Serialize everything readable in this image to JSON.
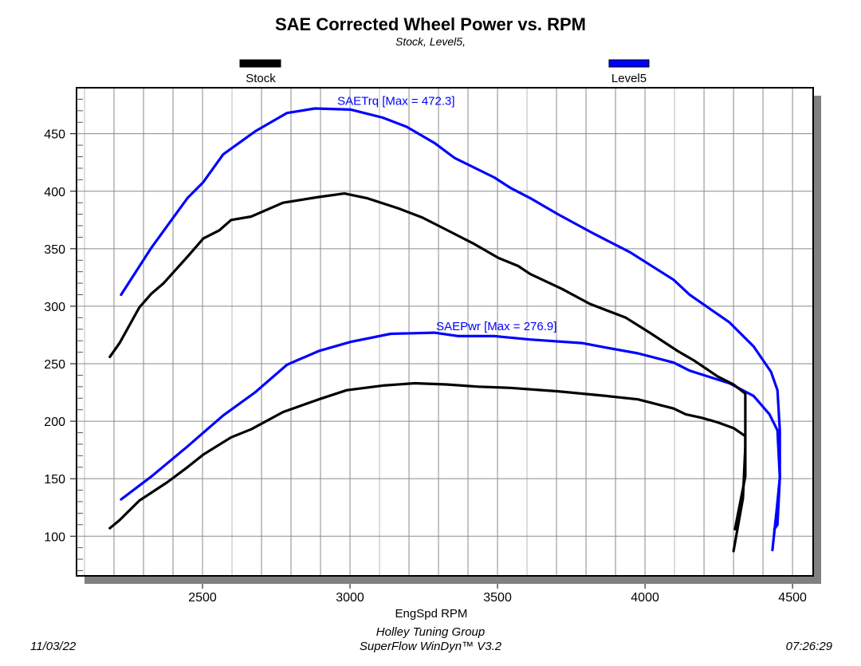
{
  "chart_data": {
    "type": "line",
    "title": "SAE Corrected Wheel Power vs. RPM",
    "subtitle": "Stock, Level5,",
    "xlabel": "EngSpd RPM",
    "ylabel": "",
    "xlim": [
      2073,
      4570
    ],
    "ylim": [
      65.5,
      490
    ],
    "grid": true,
    "x_ticks": [
      2500,
      3000,
      3500,
      4000,
      4500
    ],
    "y_ticks": [
      100,
      150,
      200,
      250,
      300,
      350,
      400,
      450
    ],
    "legend": [
      {
        "name": "Stock",
        "color": "#000000"
      },
      {
        "name": "Level5",
        "color": "#0000ff"
      }
    ],
    "legend_placement": "top",
    "annotations": [
      {
        "text": "SAETrq [Max = 472.3]",
        "x": 2957,
        "y": 475,
        "color": "#0000ff"
      },
      {
        "text": "SAEPwr [Max = 276.9]",
        "x": 3292,
        "y": 279,
        "color": "#0000ff"
      }
    ],
    "series": [
      {
        "name": "Level5 SAETrq",
        "color": "#0000ff",
        "points": [
          [
            2224,
            310
          ],
          [
            2327,
            351
          ],
          [
            2449,
            394
          ],
          [
            2503,
            408
          ],
          [
            2570,
            432
          ],
          [
            2678,
            452
          ],
          [
            2786,
            468
          ],
          [
            2881,
            472
          ],
          [
            3003,
            471
          ],
          [
            3111,
            464
          ],
          [
            3192,
            456
          ],
          [
            3286,
            442
          ],
          [
            3354,
            429
          ],
          [
            3489,
            412
          ],
          [
            3543,
            403
          ],
          [
            3611,
            394
          ],
          [
            3705,
            380
          ],
          [
            3827,
            363
          ],
          [
            3949,
            347
          ],
          [
            4097,
            323
          ],
          [
            4151,
            310
          ],
          [
            4286,
            286
          ],
          [
            4368,
            265
          ],
          [
            4427,
            243
          ],
          [
            4449,
            227
          ],
          [
            4457,
            192
          ],
          [
            4457,
            151
          ],
          [
            4446,
            122
          ],
          [
            4432,
            88
          ]
        ]
      },
      {
        "name": "Level5 SAEPwr",
        "color": "#0000ff",
        "points": [
          [
            2224,
            132
          ],
          [
            2327,
            152
          ],
          [
            2449,
            178
          ],
          [
            2570,
            205
          ],
          [
            2678,
            225
          ],
          [
            2786,
            249
          ],
          [
            2894,
            261
          ],
          [
            3003,
            269
          ],
          [
            3138,
            276
          ],
          [
            3286,
            277
          ],
          [
            3368,
            274
          ],
          [
            3489,
            274
          ],
          [
            3611,
            271
          ],
          [
            3786,
            268
          ],
          [
            3868,
            264
          ],
          [
            3976,
            259
          ],
          [
            4097,
            251
          ],
          [
            4151,
            244
          ],
          [
            4286,
            233
          ],
          [
            4368,
            222
          ],
          [
            4422,
            206
          ],
          [
            4449,
            192
          ],
          [
            4457,
            151
          ],
          [
            4449,
            110
          ],
          [
            4438,
            106
          ]
        ]
      },
      {
        "name": "Stock SAETrq",
        "color": "#000000",
        "points": [
          [
            2186,
            256
          ],
          [
            2219,
            268
          ],
          [
            2286,
            299
          ],
          [
            2327,
            311
          ],
          [
            2368,
            320
          ],
          [
            2449,
            343
          ],
          [
            2503,
            359
          ],
          [
            2557,
            366
          ],
          [
            2597,
            375
          ],
          [
            2665,
            378
          ],
          [
            2773,
            390
          ],
          [
            2894,
            395
          ],
          [
            2981,
            398
          ],
          [
            3057,
            394
          ],
          [
            3165,
            385
          ],
          [
            3246,
            377
          ],
          [
            3300,
            370
          ],
          [
            3422,
            354
          ],
          [
            3503,
            342
          ],
          [
            3570,
            335
          ],
          [
            3611,
            328
          ],
          [
            3719,
            315
          ],
          [
            3813,
            302
          ],
          [
            3935,
            290
          ],
          [
            4016,
            277
          ],
          [
            4111,
            261
          ],
          [
            4165,
            253
          ],
          [
            4246,
            239
          ],
          [
            4300,
            232
          ],
          [
            4340,
            224
          ],
          [
            4340,
            178
          ],
          [
            4332,
            133
          ],
          [
            4300,
            87
          ]
        ]
      },
      {
        "name": "Stock SAEPwr",
        "color": "#000000",
        "points": [
          [
            2186,
            107
          ],
          [
            2219,
            114
          ],
          [
            2286,
            131
          ],
          [
            2381,
            147
          ],
          [
            2449,
            160
          ],
          [
            2503,
            171
          ],
          [
            2597,
            186
          ],
          [
            2665,
            193
          ],
          [
            2773,
            208
          ],
          [
            2894,
            219
          ],
          [
            2989,
            227
          ],
          [
            3111,
            231
          ],
          [
            3219,
            233
          ],
          [
            3327,
            232
          ],
          [
            3435,
            230
          ],
          [
            3543,
            229
          ],
          [
            3705,
            226
          ],
          [
            3868,
            222
          ],
          [
            3976,
            219
          ],
          [
            4097,
            211
          ],
          [
            4138,
            206
          ],
          [
            4192,
            203
          ],
          [
            4246,
            199
          ],
          [
            4300,
            194
          ],
          [
            4340,
            187
          ],
          [
            4340,
            152
          ],
          [
            4305,
            106
          ]
        ]
      }
    ]
  },
  "footer": {
    "date": "11/03/22",
    "company": "Holley Tuning Group",
    "software": "SuperFlow WinDyn™ V3.2",
    "time": "07:26:29"
  }
}
